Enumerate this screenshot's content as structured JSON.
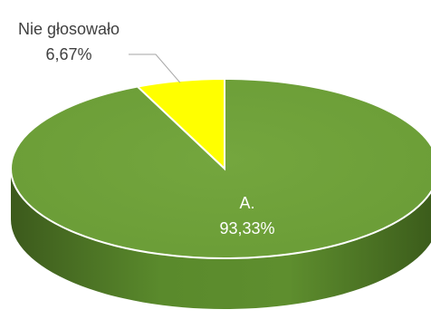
{
  "chart_data": {
    "type": "pie",
    "style": "3d",
    "slices": [
      {
        "name": "A.",
        "value": 93.33,
        "label": "93,33%",
        "color": "#70a23a"
      },
      {
        "name": "Nie głosowało",
        "value": 6.67,
        "label": "6,67%",
        "color": "#ffff00"
      }
    ],
    "legend": "none"
  }
}
